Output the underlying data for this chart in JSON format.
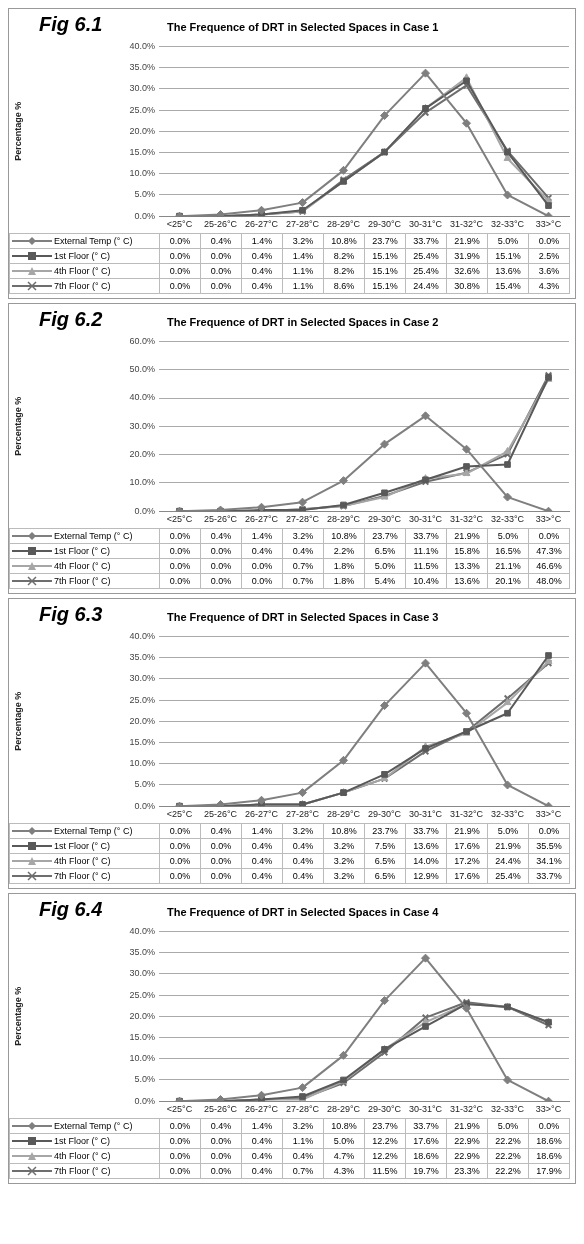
{
  "chart_data": [
    {
      "type": "line",
      "title": "The Frequence of DRT in Selected Spaces in Case 1",
      "annotations": [
        "Fig 6.1"
      ],
      "ylabel": "Percentage %",
      "categories": [
        "<25°C",
        "25-26°C",
        "26-27°C",
        "27-28°C",
        "28-29°C",
        "29-30°C",
        "30-31°C",
        "31-32°C",
        "32-33°C",
        "33>°C"
      ],
      "ylim": [
        0,
        40
      ],
      "yticks": [
        {
          "value": 0,
          "label": "0.0%"
        },
        {
          "value": 5,
          "label": "5.0%"
        },
        {
          "value": 10,
          "label": "10.0%"
        },
        {
          "value": 15,
          "label": "15.0%"
        },
        {
          "value": 20,
          "label": "20.0%"
        },
        {
          "value": 25,
          "label": "25.0%"
        },
        {
          "value": 30,
          "label": "30.0%"
        },
        {
          "value": 35,
          "label": "35.0%"
        },
        {
          "value": 40,
          "label": "40.0%"
        }
      ],
      "grid": "y",
      "legend": "bottom",
      "series": [
        {
          "name": "External Temp (° C)",
          "color": "#7f7f7f",
          "marker": "diamond",
          "values": [
            0.0,
            0.4,
            1.4,
            3.2,
            10.8,
            23.7,
            33.7,
            21.9,
            5.0,
            0.0
          ],
          "value_labels": [
            "0.0%",
            "0.4%",
            "1.4%",
            "3.2%",
            "10.8%",
            "23.7%",
            "33.7%",
            "21.9%",
            "5.0%",
            "0.0%"
          ]
        },
        {
          "name": "1st Floor (° C)",
          "color": "#595959",
          "marker": "square",
          "values": [
            0.0,
            0.0,
            0.4,
            1.4,
            8.2,
            15.1,
            25.4,
            31.9,
            15.1,
            2.5
          ],
          "value_labels": [
            "0.0%",
            "0.0%",
            "0.4%",
            "1.4%",
            "8.2%",
            "15.1%",
            "25.4%",
            "31.9%",
            "15.1%",
            "2.5%"
          ]
        },
        {
          "name": "4th Floor (° C)",
          "color": "#a6a6a6",
          "marker": "triangle",
          "values": [
            0.0,
            0.0,
            0.4,
            1.1,
            8.2,
            15.1,
            25.4,
            32.6,
            13.6,
            3.6
          ],
          "value_labels": [
            "0.0%",
            "0.0%",
            "0.4%",
            "1.1%",
            "8.2%",
            "15.1%",
            "25.4%",
            "32.6%",
            "13.6%",
            "3.6%"
          ]
        },
        {
          "name": "7th Floor (° C)",
          "color": "#6e6e6e",
          "marker": "cross",
          "values": [
            0.0,
            0.0,
            0.4,
            1.1,
            8.6,
            15.1,
            24.4,
            30.8,
            15.4,
            4.3
          ],
          "value_labels": [
            "0.0%",
            "0.0%",
            "0.4%",
            "1.1%",
            "8.6%",
            "15.1%",
            "24.4%",
            "30.8%",
            "15.4%",
            "4.3%"
          ]
        }
      ]
    },
    {
      "type": "line",
      "title": "The Frequence of DRT in Selected Spaces in Case 2",
      "annotations": [
        "Fig 6.2"
      ],
      "ylabel": "Percentage %",
      "categories": [
        "<25°C",
        "25-26°C",
        "26-27°C",
        "27-28°C",
        "28-29°C",
        "29-30°C",
        "30-31°C",
        "31-32°C",
        "32-33°C",
        "33>°C"
      ],
      "ylim": [
        0,
        60
      ],
      "yticks": [
        {
          "value": 0,
          "label": "0.0%"
        },
        {
          "value": 10,
          "label": "10.0%"
        },
        {
          "value": 20,
          "label": "20.0%"
        },
        {
          "value": 30,
          "label": "30.0%"
        },
        {
          "value": 40,
          "label": "40.0%"
        },
        {
          "value": 50,
          "label": "50.0%"
        },
        {
          "value": 60,
          "label": "60.0%"
        }
      ],
      "grid": "y",
      "legend": "bottom",
      "series": [
        {
          "name": "External Temp (° C)",
          "color": "#7f7f7f",
          "marker": "diamond",
          "values": [
            0.0,
            0.4,
            1.4,
            3.2,
            10.8,
            23.7,
            33.7,
            21.9,
            5.0,
            0.0
          ],
          "value_labels": [
            "0.0%",
            "0.4%",
            "1.4%",
            "3.2%",
            "10.8%",
            "23.7%",
            "33.7%",
            "21.9%",
            "5.0%",
            "0.0%"
          ]
        },
        {
          "name": "1st Floor (° C)",
          "color": "#595959",
          "marker": "square",
          "values": [
            0.0,
            0.0,
            0.4,
            0.4,
            2.2,
            6.5,
            11.1,
            15.8,
            16.5,
            47.3
          ],
          "value_labels": [
            "0.0%",
            "0.0%",
            "0.4%",
            "0.4%",
            "2.2%",
            "6.5%",
            "11.1%",
            "15.8%",
            "16.5%",
            "47.3%"
          ]
        },
        {
          "name": "4th Floor (° C)",
          "color": "#a6a6a6",
          "marker": "triangle",
          "values": [
            0.0,
            0.0,
            0.0,
            0.7,
            1.8,
            5.0,
            11.5,
            13.3,
            21.1,
            46.6
          ],
          "value_labels": [
            "0.0%",
            "0.0%",
            "0.0%",
            "0.7%",
            "1.8%",
            "5.0%",
            "11.5%",
            "13.3%",
            "21.1%",
            "46.6%"
          ]
        },
        {
          "name": "7th Floor (° C)",
          "color": "#6e6e6e",
          "marker": "cross",
          "values": [
            0.0,
            0.0,
            0.0,
            0.7,
            1.8,
            5.4,
            10.4,
            13.6,
            20.1,
            48.0
          ],
          "value_labels": [
            "0.0%",
            "0.0%",
            "0.0%",
            "0.7%",
            "1.8%",
            "5.4%",
            "10.4%",
            "13.6%",
            "20.1%",
            "48.0%"
          ]
        }
      ]
    },
    {
      "type": "line",
      "title": "The Frequence of DRT in Selected Spaces in Case 3",
      "annotations": [
        "Fig 6.3"
      ],
      "ylabel": "Percentage %",
      "categories": [
        "<25°C",
        "25-26°C",
        "26-27°C",
        "27-28°C",
        "28-29°C",
        "29-30°C",
        "30-31°C",
        "31-32°C",
        "32-33°C",
        "33>°C"
      ],
      "ylim": [
        0,
        40
      ],
      "yticks": [
        {
          "value": 0,
          "label": "0.0%"
        },
        {
          "value": 5,
          "label": "5.0%"
        },
        {
          "value": 10,
          "label": "10.0%"
        },
        {
          "value": 15,
          "label": "15.0%"
        },
        {
          "value": 20,
          "label": "20.0%"
        },
        {
          "value": 25,
          "label": "25.0%"
        },
        {
          "value": 30,
          "label": "30.0%"
        },
        {
          "value": 35,
          "label": "35.0%"
        },
        {
          "value": 40,
          "label": "40.0%"
        }
      ],
      "grid": "y",
      "legend": "bottom",
      "series": [
        {
          "name": "External Temp (° C)",
          "color": "#7f7f7f",
          "marker": "diamond",
          "values": [
            0.0,
            0.4,
            1.4,
            3.2,
            10.8,
            23.7,
            33.7,
            21.9,
            5.0,
            0.0
          ],
          "value_labels": [
            "0.0%",
            "0.4%",
            "1.4%",
            "3.2%",
            "10.8%",
            "23.7%",
            "33.7%",
            "21.9%",
            "5.0%",
            "0.0%"
          ]
        },
        {
          "name": "1st Floor (° C)",
          "color": "#595959",
          "marker": "square",
          "values": [
            0.0,
            0.0,
            0.4,
            0.4,
            3.2,
            7.5,
            13.6,
            17.6,
            21.9,
            35.5
          ],
          "value_labels": [
            "0.0%",
            "0.0%",
            "0.4%",
            "0.4%",
            "3.2%",
            "7.5%",
            "13.6%",
            "17.6%",
            "21.9%",
            "35.5%"
          ]
        },
        {
          "name": "4th Floor (° C)",
          "color": "#a6a6a6",
          "marker": "triangle",
          "values": [
            0.0,
            0.0,
            0.4,
            0.4,
            3.2,
            6.5,
            14.0,
            17.2,
            24.4,
            34.1
          ],
          "value_labels": [
            "0.0%",
            "0.0%",
            "0.4%",
            "0.4%",
            "3.2%",
            "6.5%",
            "14.0%",
            "17.2%",
            "24.4%",
            "34.1%"
          ]
        },
        {
          "name": "7th Floor (° C)",
          "color": "#6e6e6e",
          "marker": "cross",
          "values": [
            0.0,
            0.0,
            0.4,
            0.4,
            3.2,
            6.5,
            12.9,
            17.6,
            25.4,
            33.7
          ],
          "value_labels": [
            "0.0%",
            "0.0%",
            "0.4%",
            "0.4%",
            "3.2%",
            "6.5%",
            "12.9%",
            "17.6%",
            "25.4%",
            "33.7%"
          ]
        }
      ]
    },
    {
      "type": "line",
      "title": "The Frequence of DRT in Selected Spaces in Case 4",
      "annotations": [
        "Fig 6.4"
      ],
      "ylabel": "Percentage %",
      "categories": [
        "<25°C",
        "25-26°C",
        "26-27°C",
        "27-28°C",
        "28-29°C",
        "29-30°C",
        "30-31°C",
        "31-32°C",
        "32-33°C",
        "33>°C"
      ],
      "ylim": [
        0,
        40
      ],
      "yticks": [
        {
          "value": 0,
          "label": "0.0%"
        },
        {
          "value": 5,
          "label": "5.0%"
        },
        {
          "value": 10,
          "label": "10.0%"
        },
        {
          "value": 15,
          "label": "15.0%"
        },
        {
          "value": 20,
          "label": "20.0%"
        },
        {
          "value": 25,
          "label": "25.0%"
        },
        {
          "value": 30,
          "label": "30.0%"
        },
        {
          "value": 35,
          "label": "35.0%"
        },
        {
          "value": 40,
          "label": "40.0%"
        }
      ],
      "grid": "y",
      "legend": "bottom",
      "series": [
        {
          "name": "External Temp (° C)",
          "color": "#7f7f7f",
          "marker": "diamond",
          "values": [
            0.0,
            0.4,
            1.4,
            3.2,
            10.8,
            23.7,
            33.7,
            21.9,
            5.0,
            0.0
          ],
          "value_labels": [
            "0.0%",
            "0.4%",
            "1.4%",
            "3.2%",
            "10.8%",
            "23.7%",
            "33.7%",
            "21.9%",
            "5.0%",
            "0.0%"
          ]
        },
        {
          "name": "1st Floor (° C)",
          "color": "#595959",
          "marker": "square",
          "values": [
            0.0,
            0.0,
            0.4,
            1.1,
            5.0,
            12.2,
            17.6,
            22.9,
            22.2,
            18.6
          ],
          "value_labels": [
            "0.0%",
            "0.0%",
            "0.4%",
            "1.1%",
            "5.0%",
            "12.2%",
            "17.6%",
            "22.9%",
            "22.2%",
            "18.6%"
          ]
        },
        {
          "name": "4th Floor (° C)",
          "color": "#a6a6a6",
          "marker": "triangle",
          "values": [
            0.0,
            0.0,
            0.4,
            0.4,
            4.7,
            12.2,
            18.6,
            22.9,
            22.2,
            18.6
          ],
          "value_labels": [
            "0.0%",
            "0.0%",
            "0.4%",
            "0.4%",
            "4.7%",
            "12.2%",
            "18.6%",
            "22.9%",
            "22.2%",
            "18.6%"
          ]
        },
        {
          "name": "7th Floor (° C)",
          "color": "#6e6e6e",
          "marker": "cross",
          "values": [
            0.0,
            0.0,
            0.4,
            0.7,
            4.3,
            11.5,
            19.7,
            23.3,
            22.2,
            17.9
          ],
          "value_labels": [
            "0.0%",
            "0.0%",
            "0.4%",
            "0.7%",
            "4.3%",
            "11.5%",
            "19.7%",
            "23.3%",
            "22.2%",
            "17.9%"
          ]
        }
      ]
    }
  ]
}
